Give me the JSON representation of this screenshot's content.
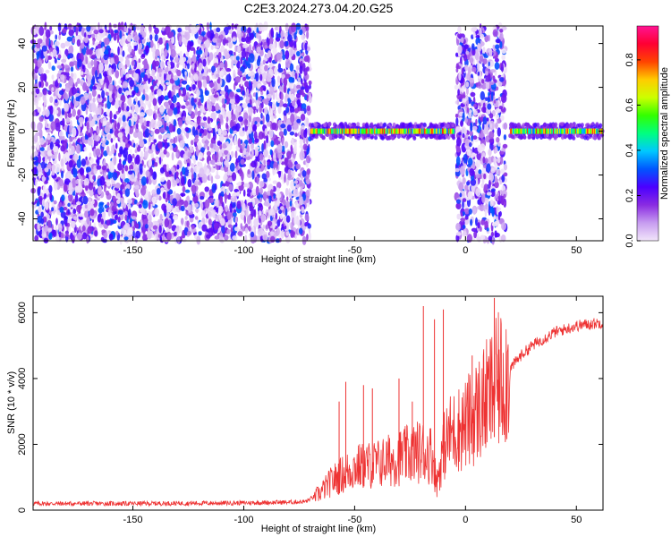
{
  "title": "C2E3.2024.273.04.20.G25",
  "chart_data": [
    {
      "type": "heatmap",
      "xlabel": "Height of straight line (km)",
      "ylabel": "Frequency (Hz)",
      "xlim": [
        -195,
        62
      ],
      "ylim": [
        -50,
        48
      ],
      "x_ticks": [
        -150,
        -100,
        -50,
        0,
        50
      ],
      "y_ticks": [
        -40,
        -20,
        0,
        20,
        40
      ],
      "colorbar": {
        "label": "Normalized spectral amplitude",
        "range": [
          0,
          0.95
        ],
        "ticks": [
          "0.0",
          "0.2",
          "0.4",
          "0.6",
          "0.8"
        ],
        "colors": [
          "#f2e6fa",
          "#c79cf0",
          "#8a2be2",
          "#4b00ff",
          "#0055ff",
          "#00c8ff",
          "#00ff80",
          "#33ff00",
          "#ccff00",
          "#ffcc00",
          "#ff4400",
          "#ff0033",
          "#ff1493"
        ]
      },
      "regions": [
        {
          "x": [
            -195,
            -70
          ],
          "content": "broadband noise"
        },
        {
          "x": [
            -70,
            -5
          ],
          "content": "narrow band near 0 Hz"
        },
        {
          "x": [
            -4,
            18
          ],
          "content": "broadband noise"
        },
        {
          "x": [
            20,
            62
          ],
          "content": "narrow band near 0 Hz"
        }
      ]
    },
    {
      "type": "line",
      "xlabel": "Height of straight line (km)",
      "ylabel": "SNR (10 * v/v)",
      "xlim": [
        -195,
        62
      ],
      "ylim": [
        0,
        6500
      ],
      "x_ticks": [
        -150,
        -100,
        -50,
        0,
        50
      ],
      "y_ticks": [
        0,
        2000,
        4000,
        6000
      ],
      "color": "#ee3333",
      "envelope": {
        "x": [
          -195,
          -150,
          -100,
          -80,
          -72,
          -66,
          -60,
          -55,
          -50,
          -45,
          -40,
          -35,
          -30,
          -25,
          -20,
          -15,
          -13,
          -10,
          -7,
          -5,
          0,
          5,
          10,
          15,
          20,
          25,
          30,
          35,
          40,
          45,
          50,
          55,
          62
        ],
        "y": [
          200,
          200,
          220,
          240,
          260,
          500,
          900,
          1100,
          1300,
          1350,
          1400,
          1500,
          1600,
          1700,
          1800,
          1700,
          800,
          1900,
          2300,
          2400,
          2600,
          3000,
          3400,
          3900,
          4300,
          4700,
          5000,
          5200,
          5400,
          5500,
          5600,
          5650,
          5700
        ]
      },
      "spikes": [
        {
          "x": -57,
          "y": 3300
        },
        {
          "x": -54,
          "y": 3900
        },
        {
          "x": -46,
          "y": 3800
        },
        {
          "x": -42,
          "y": 3700
        },
        {
          "x": -30,
          "y": 4000
        },
        {
          "x": -24,
          "y": 3300
        },
        {
          "x": -19,
          "y": 6200
        },
        {
          "x": -14,
          "y": 5800
        },
        {
          "x": -10,
          "y": 6100
        },
        {
          "x": 3,
          "y": 4700
        },
        {
          "x": 13,
          "y": 6450
        }
      ]
    }
  ]
}
